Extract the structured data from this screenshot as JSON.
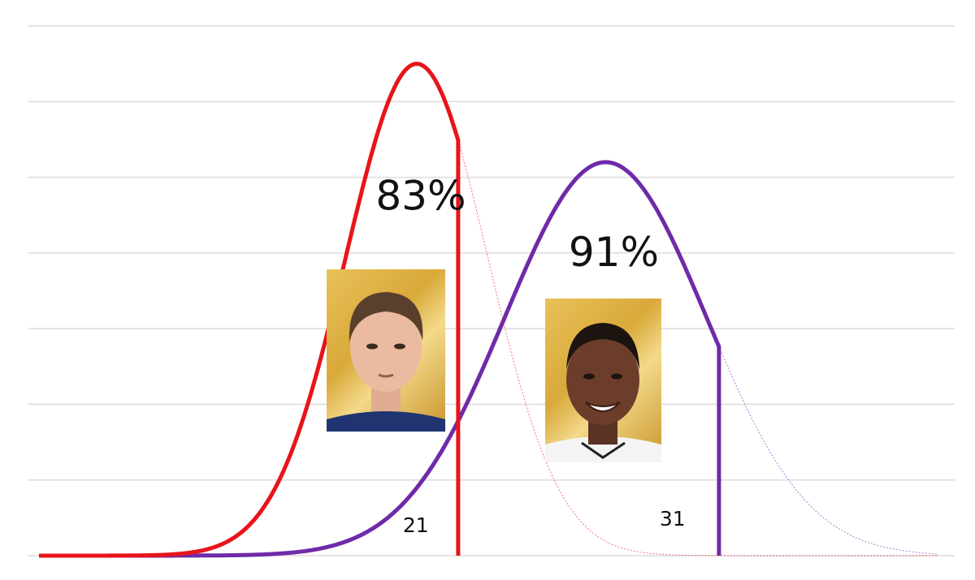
{
  "chart_data": {
    "type": "area",
    "title": "",
    "xlabel": "",
    "ylabel": "",
    "grid": true,
    "xlim": [
      0,
      100
    ],
    "ylim": [
      0,
      7
    ],
    "series": [
      {
        "id": "player-1",
        "color": "#e8141b",
        "mean": 42,
        "sd": 7.9,
        "peak": 6.5,
        "cutoff_x": 46.6,
        "cutoff_label": "21",
        "percentile_label": "83%",
        "photo_icon": "player-photo-icon"
      },
      {
        "id": "player-2",
        "color": "#6f2aa8",
        "mean": 63,
        "sd": 11.2,
        "peak": 5.2,
        "cutoff_x": 75.6,
        "cutoff_label": "31",
        "percentile_label": "91%",
        "photo_icon": "player-photo-icon"
      }
    ]
  }
}
